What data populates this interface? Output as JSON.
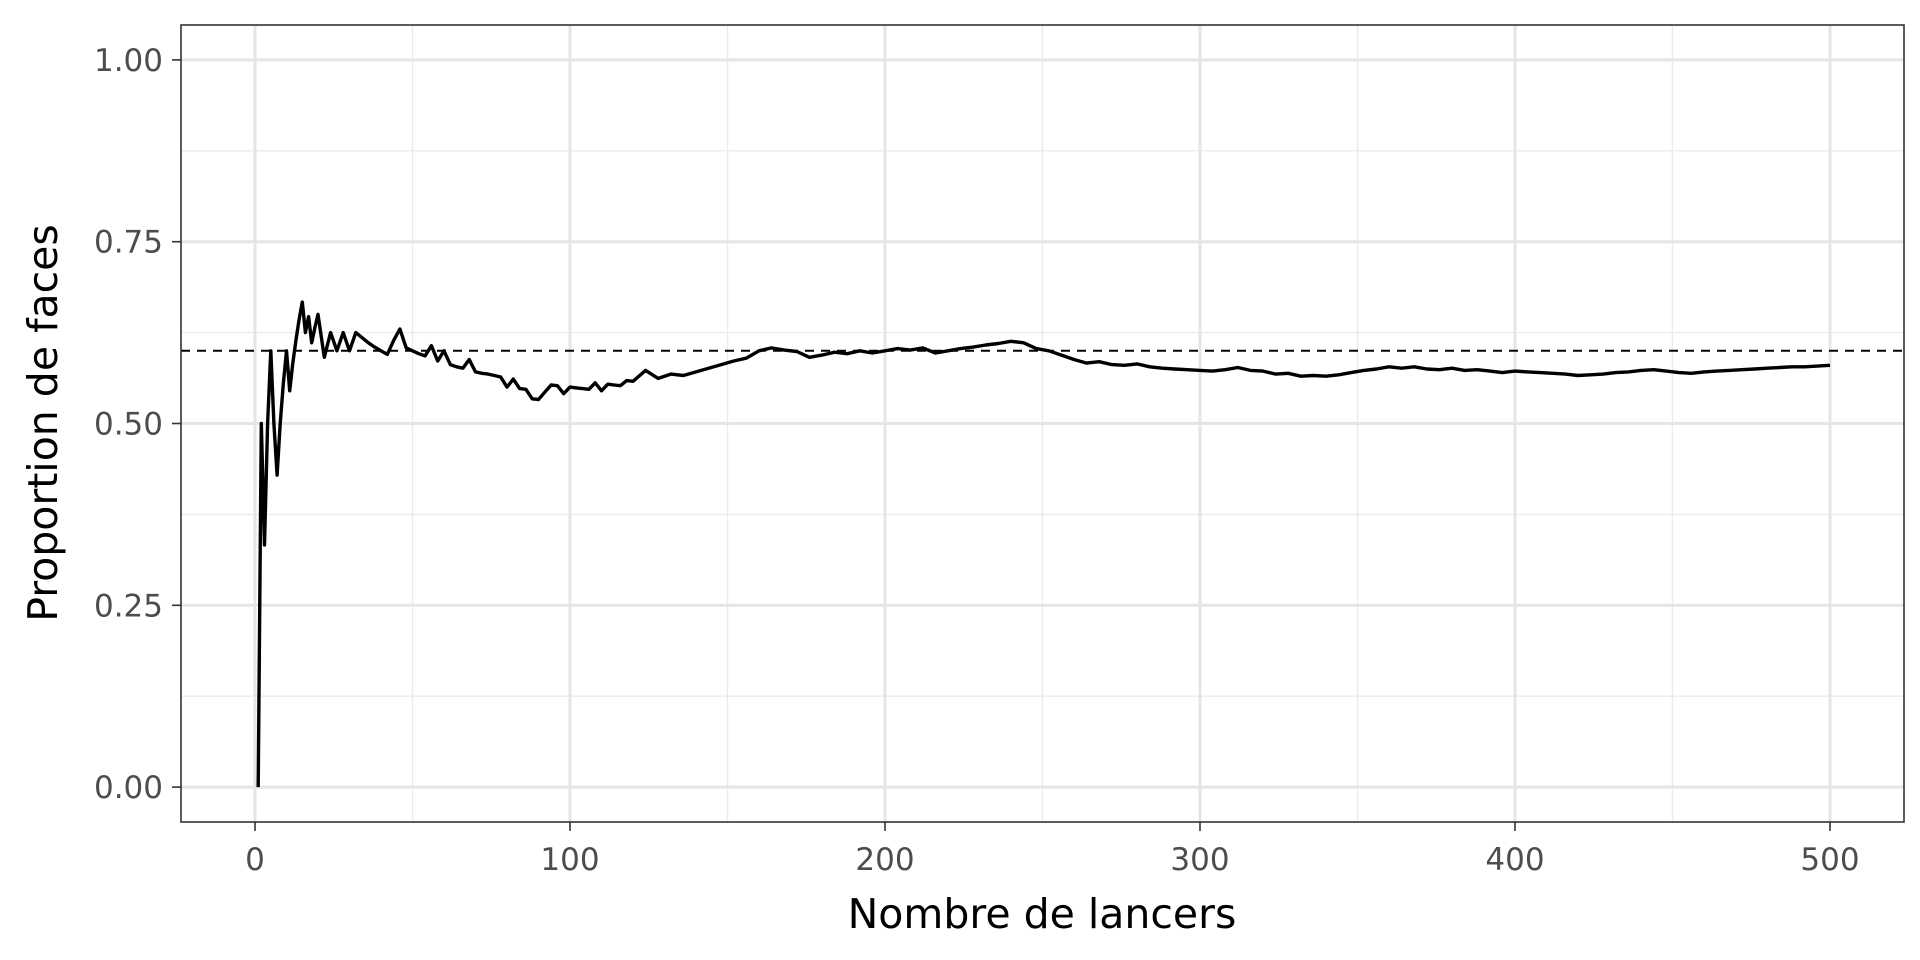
{
  "chart_data": {
    "type": "line",
    "title": "",
    "xlabel": "Nombre de lancers",
    "ylabel": "Proportion de faces",
    "xlim": [
      -23.5,
      523.5
    ],
    "ylim": [
      -0.048,
      1.048
    ],
    "x_ticks": [
      0,
      100,
      200,
      300,
      400,
      500
    ],
    "x_tick_labels": [
      "0",
      "100",
      "200",
      "300",
      "400",
      "500"
    ],
    "y_ticks": [
      0,
      0.25,
      0.5,
      0.75,
      1
    ],
    "y_tick_labels": [
      "0.00",
      "0.25",
      "0.50",
      "0.75",
      "1.00"
    ],
    "grid": true,
    "legend": "none",
    "reference_line": {
      "y": 0.6,
      "style": "dashed"
    },
    "series": [
      {
        "x": [
          1,
          2,
          3,
          4,
          5,
          6,
          7,
          8,
          9,
          10,
          11,
          12,
          13,
          14,
          15,
          16,
          17,
          18,
          19,
          20,
          22,
          24,
          26,
          28,
          30,
          32,
          34,
          36,
          38,
          40,
          42,
          44,
          46,
          48,
          50,
          52,
          54,
          56,
          58,
          60,
          62,
          64,
          66,
          68,
          70,
          72,
          74,
          76,
          78,
          80,
          82,
          84,
          86,
          88,
          90,
          92,
          94,
          96,
          98,
          100,
          102,
          104,
          106,
          108,
          110,
          112,
          114,
          116,
          118,
          120,
          124,
          128,
          132,
          136,
          140,
          144,
          148,
          152,
          156,
          160,
          164,
          168,
          172,
          176,
          180,
          184,
          188,
          192,
          196,
          200,
          204,
          208,
          212,
          216,
          220,
          224,
          228,
          232,
          236,
          240,
          244,
          248,
          252,
          256,
          260,
          264,
          268,
          272,
          276,
          280,
          284,
          288,
          292,
          296,
          300,
          304,
          308,
          312,
          316,
          320,
          324,
          328,
          332,
          336,
          340,
          344,
          348,
          352,
          356,
          360,
          364,
          368,
          372,
          376,
          380,
          384,
          388,
          392,
          396,
          400,
          404,
          408,
          412,
          416,
          420,
          424,
          428,
          432,
          436,
          440,
          444,
          448,
          452,
          456,
          460,
          464,
          468,
          472,
          476,
          480,
          484,
          488,
          492,
          496,
          500
        ],
        "y": [
          0,
          0.5,
          0.333,
          0.5,
          0.6,
          0.5,
          0.429,
          0.5,
          0.556,
          0.6,
          0.545,
          0.583,
          0.615,
          0.643,
          0.667,
          0.625,
          0.647,
          0.611,
          0.632,
          0.65,
          0.591,
          0.625,
          0.6,
          0.625,
          0.6,
          0.625,
          0.618,
          0.611,
          0.605,
          0.6,
          0.595,
          0.614,
          0.63,
          0.604,
          0.6,
          0.596,
          0.593,
          0.607,
          0.586,
          0.6,
          0.581,
          0.578,
          0.576,
          0.588,
          0.571,
          0.569,
          0.568,
          0.566,
          0.564,
          0.55,
          0.561,
          0.548,
          0.547,
          0.534,
          0.533,
          0.543,
          0.553,
          0.552,
          0.541,
          0.55,
          0.549,
          0.548,
          0.547,
          0.556,
          0.545,
          0.554,
          0.553,
          0.552,
          0.559,
          0.558,
          0.573,
          0.562,
          0.568,
          0.566,
          0.571,
          0.576,
          0.581,
          0.586,
          0.59,
          0.6,
          0.604,
          0.601,
          0.599,
          0.591,
          0.594,
          0.598,
          0.596,
          0.6,
          0.597,
          0.6,
          0.603,
          0.601,
          0.604,
          0.597,
          0.6,
          0.603,
          0.605,
          0.608,
          0.61,
          0.613,
          0.611,
          0.603,
          0.6,
          0.594,
          0.588,
          0.583,
          0.585,
          0.581,
          0.58,
          0.582,
          0.578,
          0.576,
          0.575,
          0.574,
          0.573,
          0.572,
          0.574,
          0.577,
          0.573,
          0.572,
          0.568,
          0.569,
          0.565,
          0.566,
          0.565,
          0.567,
          0.57,
          0.573,
          0.575,
          0.578,
          0.576,
          0.578,
          0.575,
          0.574,
          0.576,
          0.573,
          0.574,
          0.572,
          0.57,
          0.572,
          0.571,
          0.57,
          0.569,
          0.568,
          0.566,
          0.567,
          0.568,
          0.57,
          0.571,
          0.573,
          0.574,
          0.572,
          0.57,
          0.569,
          0.571,
          0.572,
          0.573,
          0.574,
          0.575,
          0.576,
          0.577,
          0.578,
          0.578,
          0.579,
          0.58
        ]
      }
    ]
  }
}
